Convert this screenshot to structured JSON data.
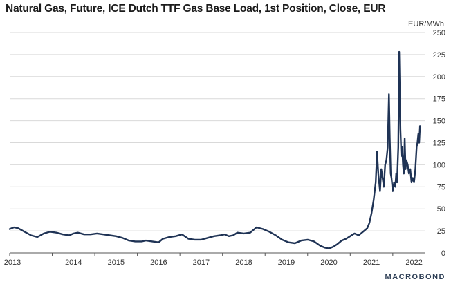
{
  "chart_data": {
    "type": "line",
    "title": "Natural Gas, Future, ICE Dutch TTF Gas Base Load, 1st Position, Close, EUR",
    "ylabel": "EUR/MWh",
    "xlabel": "",
    "ylim": [
      0,
      250
    ],
    "yticks": [
      0,
      25,
      50,
      75,
      100,
      125,
      150,
      175,
      200,
      225,
      250
    ],
    "xlim": [
      2013.0,
      2022.75
    ],
    "xticks": [
      "2013",
      "2014",
      "2015",
      "2016",
      "2017",
      "2018",
      "2019",
      "2020",
      "2021",
      "2022"
    ],
    "grid": true,
    "line_color": "#1f3355",
    "series": [
      {
        "name": "TTF 1st Position Close",
        "x": [
          2013.0,
          2013.1,
          2013.2,
          2013.35,
          2013.5,
          2013.65,
          2013.8,
          2013.95,
          2014.1,
          2014.25,
          2014.4,
          2014.5,
          2014.6,
          2014.75,
          2014.9,
          2015.05,
          2015.2,
          2015.35,
          2015.5,
          2015.65,
          2015.8,
          2015.95,
          2016.1,
          2016.2,
          2016.35,
          2016.5,
          2016.6,
          2016.75,
          2016.9,
          2017.05,
          2017.2,
          2017.35,
          2017.5,
          2017.65,
          2017.8,
          2017.95,
          2018.05,
          2018.15,
          2018.25,
          2018.35,
          2018.5,
          2018.65,
          2018.8,
          2018.95,
          2019.1,
          2019.25,
          2019.4,
          2019.55,
          2019.7,
          2019.85,
          2020.0,
          2020.15,
          2020.3,
          2020.4,
          2020.5,
          2020.6,
          2020.7,
          2020.8,
          2020.9,
          2021.0,
          2021.1,
          2021.2,
          2021.3,
          2021.4,
          2021.45,
          2021.5,
          2021.55,
          2021.6,
          2021.63,
          2021.66,
          2021.7,
          2021.73,
          2021.76,
          2021.79,
          2021.82,
          2021.85,
          2021.88,
          2021.91,
          2021.93,
          2021.95,
          2021.97,
          2022.0,
          2022.03,
          2022.06,
          2022.08,
          2022.1,
          2022.13,
          2022.15,
          2022.18,
          2022.2,
          2022.22,
          2022.24,
          2022.26,
          2022.28,
          2022.3,
          2022.32,
          2022.35,
          2022.38,
          2022.41,
          2022.44,
          2022.47,
          2022.5,
          2022.53,
          2022.56,
          2022.58,
          2022.6,
          2022.62,
          2022.64
        ],
        "values": [
          27,
          29,
          28,
          24,
          20,
          18,
          22,
          24,
          23,
          21,
          20,
          22,
          23,
          21,
          21,
          22,
          21,
          20,
          19,
          17,
          14,
          13,
          13,
          14,
          13,
          12,
          16,
          18,
          19,
          21,
          16,
          15,
          15,
          17,
          19,
          20,
          21,
          19,
          20,
          23,
          22,
          23,
          29,
          27,
          24,
          20,
          15,
          12,
          11,
          14,
          15,
          13,
          8,
          6,
          5,
          7,
          10,
          14,
          16,
          19,
          22,
          20,
          24,
          28,
          34,
          45,
          60,
          80,
          115,
          90,
          70,
          95,
          85,
          75,
          100,
          105,
          120,
          180,
          130,
          90,
          85,
          70,
          80,
          75,
          90,
          80,
          120,
          228,
          140,
          110,
          120,
          100,
          90,
          130,
          95,
          105,
          100,
          90,
          95,
          80,
          85,
          80,
          95,
          120,
          125,
          135,
          125,
          144
        ]
      }
    ]
  },
  "brand": "MACROBOND"
}
